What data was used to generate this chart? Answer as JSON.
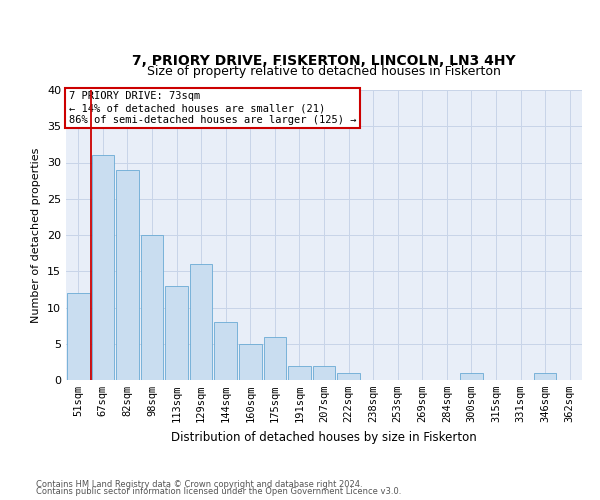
{
  "title": "7, PRIORY DRIVE, FISKERTON, LINCOLN, LN3 4HY",
  "subtitle": "Size of property relative to detached houses in Fiskerton",
  "xlabel": "Distribution of detached houses by size in Fiskerton",
  "ylabel": "Number of detached properties",
  "categories": [
    "51sqm",
    "67sqm",
    "82sqm",
    "98sqm",
    "113sqm",
    "129sqm",
    "144sqm",
    "160sqm",
    "175sqm",
    "191sqm",
    "207sqm",
    "222sqm",
    "238sqm",
    "253sqm",
    "269sqm",
    "284sqm",
    "300sqm",
    "315sqm",
    "331sqm",
    "346sqm",
    "362sqm"
  ],
  "values": [
    12,
    31,
    29,
    20,
    13,
    16,
    8,
    5,
    6,
    2,
    2,
    1,
    0,
    0,
    0,
    0,
    1,
    0,
    0,
    1,
    0
  ],
  "bar_color": "#c9ddf0",
  "bar_edgecolor": "#6aaad4",
  "grid_color": "#c8d4e8",
  "bg_color": "#e8eef8",
  "annotation_box_color": "#cc0000",
  "vline_color": "#cc0000",
  "annotation_text": "7 PRIORY DRIVE: 73sqm\n← 14% of detached houses are smaller (21)\n86% of semi-detached houses are larger (125) →",
  "footer_line1": "Contains HM Land Registry data © Crown copyright and database right 2024.",
  "footer_line2": "Contains public sector information licensed under the Open Government Licence v3.0.",
  "ylim": [
    0,
    40
  ],
  "yticks": [
    0,
    5,
    10,
    15,
    20,
    25,
    30,
    35,
    40
  ],
  "title_fontsize": 10,
  "subtitle_fontsize": 9,
  "ylabel_fontsize": 8,
  "xlabel_fontsize": 8.5,
  "tick_fontsize": 7.5,
  "footer_fontsize": 6,
  "annot_fontsize": 7.5
}
